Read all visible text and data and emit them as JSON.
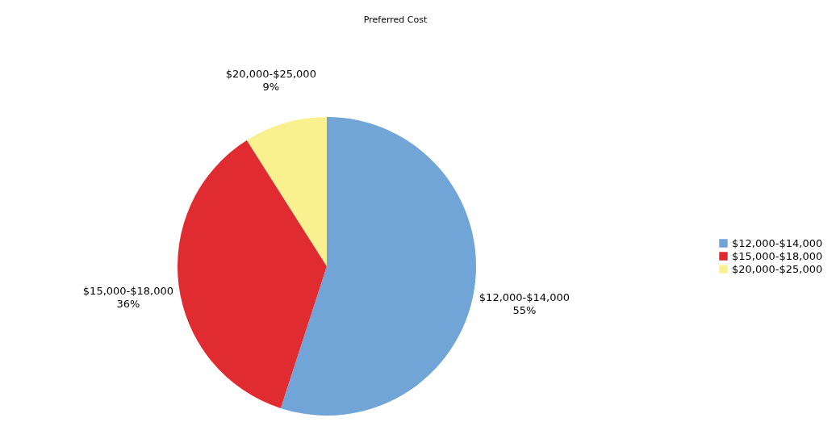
{
  "chart_data": {
    "type": "pie",
    "title": "Preferred Cost",
    "categories": [
      "$12,000-$14,000",
      "$15,000-$18,000",
      "$20,000-$25,000"
    ],
    "values": [
      55,
      36,
      9
    ],
    "colors": [
      "#71a5d8",
      "#e02b30",
      "#f9f18f"
    ],
    "value_labels": [
      "55%",
      "36%",
      "9%"
    ],
    "legend": "right"
  }
}
